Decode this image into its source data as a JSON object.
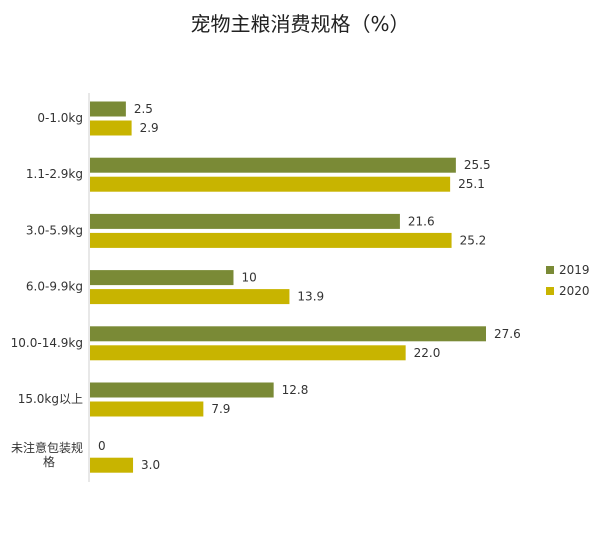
{
  "chart_data": {
    "type": "bar",
    "orientation": "horizontal",
    "title": "宠物主粮消费规格（%）",
    "categories": [
      [
        "0-1.0kg"
      ],
      [
        "1.1-2.9kg"
      ],
      [
        "3.0-5.9kg"
      ],
      [
        "6.0-9.9kg"
      ],
      [
        "10.0-14.9kg"
      ],
      [
        "15.0kg以上"
      ],
      [
        "未注意包装规",
        "格"
      ]
    ],
    "series": [
      {
        "name": "2019",
        "color": "#7a8a36",
        "values": [
          2.5,
          25.5,
          21.6,
          10,
          27.6,
          12.8,
          0
        ],
        "labels": [
          "2.5",
          "25.5",
          "21.6",
          "10",
          "27.6",
          "12.8",
          "0"
        ]
      },
      {
        "name": "2020",
        "color": "#c8b400",
        "values": [
          2.9,
          25.1,
          25.2,
          13.9,
          22.0,
          7.9,
          3.0
        ],
        "labels": [
          "2.9",
          "25.1",
          "25.2",
          "13.9",
          "22.0",
          "7.9",
          "3.0"
        ]
      }
    ],
    "xlim": [
      0,
      30
    ],
    "grid": false,
    "legend_position": "right"
  }
}
